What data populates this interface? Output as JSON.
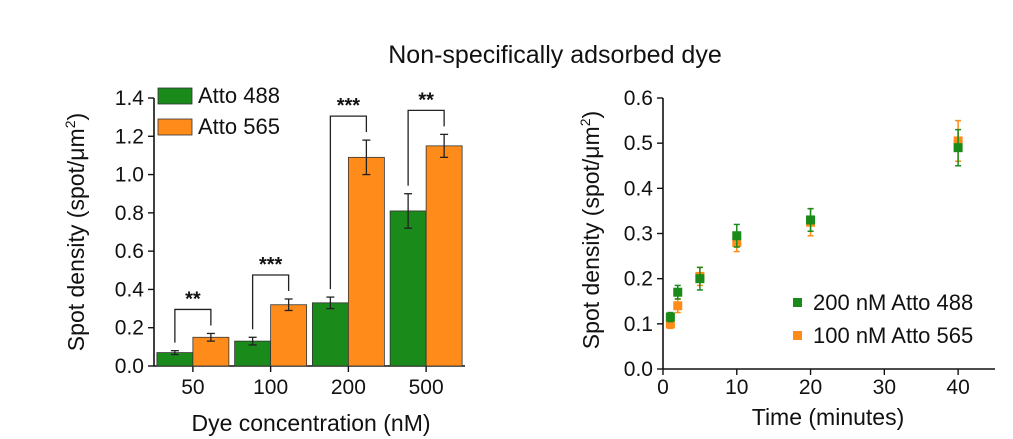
{
  "figure_title": "Non-specifically adsorbed dye",
  "colors": {
    "green": "#1a8a1a",
    "orange": "#ff8c1a",
    "axis": "#111111"
  },
  "chart_data": [
    {
      "type": "bar",
      "title": "",
      "xlabel": "Dye concentration (nM)",
      "ylabel_main": "Spot density (spot/",
      "ylabel_unit": "μm",
      "ylabel_sup": "2",
      "ylabel_close": ")",
      "ylim": [
        0,
        1.4
      ],
      "yticks": [
        "0.0",
        "0.2",
        "0.4",
        "0.6",
        "0.8",
        "1.0",
        "1.2",
        "1.4"
      ],
      "categories": [
        "50",
        "100",
        "200",
        "500"
      ],
      "series": [
        {
          "name": "Atto 488",
          "color": "#1a8a1a",
          "values": [
            0.07,
            0.13,
            0.33,
            0.81
          ],
          "errors": [
            0.01,
            0.02,
            0.03,
            0.09
          ]
        },
        {
          "name": "Atto 565",
          "color": "#ff8c1a",
          "values": [
            0.15,
            0.32,
            1.09,
            1.15
          ],
          "errors": [
            0.02,
            0.03,
            0.09,
            0.06
          ]
        }
      ],
      "significance": [
        "**",
        "***",
        "***",
        "**"
      ],
      "legend_position": "top-left"
    },
    {
      "type": "scatter",
      "title": "",
      "xlabel": "Time (minutes)",
      "ylabel_main": "Spot density (spot/",
      "ylabel_unit": "μm",
      "ylabel_sup": "2",
      "ylabel_close": ")",
      "xlim": [
        0,
        45
      ],
      "ylim": [
        0,
        0.6
      ],
      "xticks": [
        "0",
        "10",
        "20",
        "30",
        "40"
      ],
      "yticks": [
        "0.0",
        "0.1",
        "0.2",
        "0.3",
        "0.4",
        "0.5",
        "0.6"
      ],
      "series": [
        {
          "name": "200 nM Atto 488",
          "color": "#1a8a1a",
          "x": [
            1,
            2,
            5,
            10,
            20,
            40
          ],
          "y": [
            0.115,
            0.17,
            0.2,
            0.295,
            0.33,
            0.49
          ],
          "errors": [
            0.01,
            0.015,
            0.025,
            0.025,
            0.025,
            0.04
          ]
        },
        {
          "name": "100 nM Atto 565",
          "color": "#ff8c1a",
          "x": [
            1,
            2,
            5,
            10,
            20,
            40
          ],
          "y": [
            0.1,
            0.14,
            0.205,
            0.28,
            0.325,
            0.505
          ],
          "errors": [
            0.01,
            0.015,
            0.02,
            0.02,
            0.03,
            0.045
          ]
        }
      ],
      "legend_position": "bottom-right"
    }
  ]
}
